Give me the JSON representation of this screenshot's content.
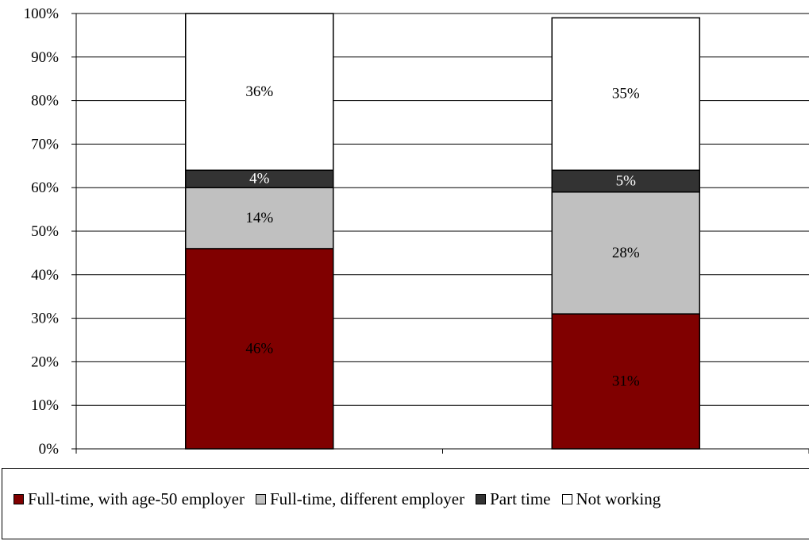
{
  "chart_data": {
    "type": "bar",
    "stacked": true,
    "percent": true,
    "categories": [
      "",
      ""
    ],
    "series": [
      {
        "name": "Full-time, with age-50 employer",
        "color": "#800000",
        "label_color": "#000000",
        "values": [
          46,
          31
        ]
      },
      {
        "name": "Full-time, different employer",
        "color": "#c0c0c0",
        "label_color": "#000000",
        "values": [
          14,
          28
        ]
      },
      {
        "name": "Part time",
        "color": "#333333",
        "label_color": "#ffffff",
        "values": [
          4,
          5
        ]
      },
      {
        "name": "Not working",
        "color": "#ffffff",
        "label_color": "#000000",
        "values": [
          36,
          35
        ]
      }
    ],
    "data_labels": [
      [
        "46%",
        "31%"
      ],
      [
        "14%",
        "28%"
      ],
      [
        "4%",
        "5%"
      ],
      [
        "36%",
        "35%"
      ]
    ],
    "y_ticks": [
      "0%",
      "10%",
      "20%",
      "30%",
      "40%",
      "50%",
      "60%",
      "70%",
      "80%",
      "90%",
      "100%"
    ],
    "ylim": [
      0,
      100
    ],
    "grid": true,
    "legend_position": "bottom",
    "title": "",
    "xlabel": "",
    "ylabel": ""
  }
}
